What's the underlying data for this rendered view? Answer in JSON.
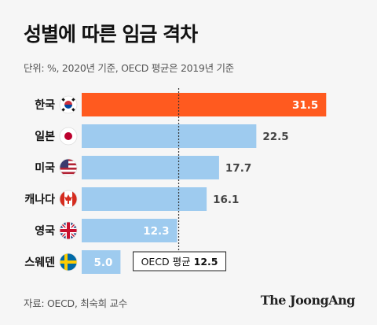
{
  "header": {
    "title": "성별에 따른 임금 격차",
    "subtitle": "단위: %, 2020년 기준, OECD 평균은 2019년 기준"
  },
  "footer": {
    "source": "자료: OECD, 최숙희 교수",
    "brand": "The JoongAng"
  },
  "colors": {
    "highlight": "#ff5a1f",
    "bar": "#9ecbef",
    "value_on_bar": "#ffffff",
    "value_off_bar": "#444444",
    "reference_line": "#333333"
  },
  "chart_data": {
    "type": "bar",
    "orientation": "horizontal",
    "categories": [
      "한국",
      "일본",
      "미국",
      "캐나다",
      "영국",
      "스웨덴"
    ],
    "flags": [
      "south-korea-flag-icon",
      "japan-flag-icon",
      "usa-flag-icon",
      "canada-flag-icon",
      "uk-flag-icon",
      "sweden-flag-icon"
    ],
    "values": [
      31.5,
      22.5,
      17.7,
      16.1,
      12.3,
      5.0
    ],
    "value_labels": [
      "31.5",
      "22.5",
      "17.7",
      "16.1",
      "12.3",
      "5.0"
    ],
    "highlight_index": 0,
    "xlim": [
      0,
      34
    ],
    "reference": {
      "value": 12.5,
      "label_prefix": "OECD 평균 ",
      "label_value": "12.5"
    }
  }
}
